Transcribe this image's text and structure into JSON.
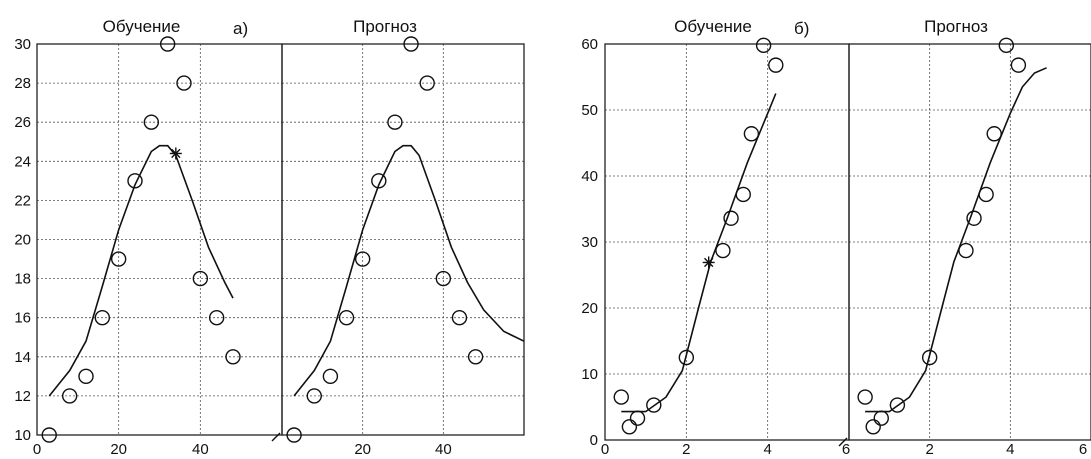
{
  "chart_data": [
    {
      "type": "scatter",
      "label": "а)",
      "ylim": [
        10,
        30
      ],
      "yticks": [
        10,
        12,
        14,
        16,
        18,
        20,
        22,
        24,
        26,
        28,
        30
      ],
      "panels": [
        {
          "title": "Обучение",
          "xlim": [
            0,
            60
          ],
          "xticks": [
            20,
            40
          ],
          "x_tick_labels": [
            "0",
            "20",
            "40"
          ],
          "points": [
            [
              3,
              10
            ],
            [
              8,
              12
            ],
            [
              12,
              13
            ],
            [
              16,
              16
            ],
            [
              20,
              19
            ],
            [
              24,
              23
            ],
            [
              28,
              26
            ],
            [
              32,
              30
            ],
            [
              36,
              28
            ],
            [
              40,
              18
            ],
            [
              44,
              16
            ],
            [
              48,
              14
            ]
          ],
          "curve": [
            [
              3,
              12
            ],
            [
              8,
              13.3
            ],
            [
              12,
              14.8
            ],
            [
              16,
              17.6
            ],
            [
              20,
              20.5
            ],
            [
              24,
              22.8
            ],
            [
              28,
              24.5
            ],
            [
              30,
              24.8
            ],
            [
              32,
              24.8
            ],
            [
              34,
              24.3
            ],
            [
              38,
              22
            ],
            [
              42,
              19.6
            ],
            [
              46,
              17.8
            ],
            [
              48,
              17
            ]
          ],
          "marker": [
            34,
            24.4
          ]
        },
        {
          "title": "Прогноз",
          "xlim": [
            0,
            60
          ],
          "xticks": [
            20,
            40
          ],
          "x_tick_labels": [
            "20",
            "40"
          ],
          "points": [
            [
              3,
              10
            ],
            [
              8,
              12
            ],
            [
              12,
              13
            ],
            [
              16,
              16
            ],
            [
              20,
              19
            ],
            [
              24,
              23
            ],
            [
              28,
              26
            ],
            [
              32,
              30
            ],
            [
              36,
              28
            ],
            [
              40,
              18
            ],
            [
              44,
              16
            ],
            [
              48,
              14
            ]
          ],
          "curve": [
            [
              3,
              12
            ],
            [
              8,
              13.3
            ],
            [
              12,
              14.8
            ],
            [
              16,
              17.6
            ],
            [
              20,
              20.5
            ],
            [
              24,
              22.8
            ],
            [
              28,
              24.5
            ],
            [
              30,
              24.8
            ],
            [
              32,
              24.8
            ],
            [
              34,
              24.3
            ],
            [
              38,
              22
            ],
            [
              42,
              19.6
            ],
            [
              46,
              17.8
            ],
            [
              50,
              16.4
            ],
            [
              55,
              15.3
            ],
            [
              60,
              14.8
            ]
          ]
        }
      ]
    },
    {
      "type": "scatter",
      "label": "б)",
      "ylim": [
        0,
        60
      ],
      "yticks": [
        0,
        10,
        20,
        30,
        40,
        50,
        60
      ],
      "panels": [
        {
          "title": "Обучение",
          "xlim": [
            0,
            6
          ],
          "xticks": [
            2,
            4
          ],
          "x_tick_labels": [
            "0",
            "2",
            "4",
            "6"
          ],
          "points": [
            [
              0.4,
              6.5
            ],
            [
              0.6,
              2
            ],
            [
              0.8,
              3.3
            ],
            [
              1.2,
              5.3
            ],
            [
              2.0,
              12.5
            ],
            [
              2.9,
              28.7
            ],
            [
              3.1,
              33.6
            ],
            [
              3.4,
              37.2
            ],
            [
              3.6,
              46.4
            ],
            [
              3.9,
              59.8
            ],
            [
              4.2,
              56.8
            ]
          ],
          "curve": [
            [
              0.4,
              4.3
            ],
            [
              1.0,
              4.3
            ],
            [
              1.5,
              6.5
            ],
            [
              1.9,
              10.5
            ],
            [
              2.3,
              20
            ],
            [
              2.6,
              27
            ],
            [
              3.0,
              33.5
            ],
            [
              3.5,
              42
            ],
            [
              4.0,
              49.5
            ],
            [
              4.2,
              52.5
            ]
          ],
          "marker": [
            2.55,
            26.9
          ],
          "short_line": [
            [
              0.4,
              4.3
            ],
            [
              1.0,
              4.3
            ]
          ]
        },
        {
          "title": "Прогноз",
          "xlim": [
            0,
            6
          ],
          "xticks": [
            2,
            4
          ],
          "x_tick_labels": [
            "2",
            "4",
            "6"
          ],
          "points": [
            [
              0.4,
              6.5
            ],
            [
              0.6,
              2
            ],
            [
              0.8,
              3.3
            ],
            [
              1.2,
              5.3
            ],
            [
              2.0,
              12.5
            ],
            [
              2.9,
              28.7
            ],
            [
              3.1,
              33.6
            ],
            [
              3.4,
              37.2
            ],
            [
              3.6,
              46.4
            ],
            [
              3.9,
              59.8
            ],
            [
              4.2,
              56.8
            ]
          ],
          "curve": [
            [
              0.4,
              4.3
            ],
            [
              1.0,
              4.3
            ],
            [
              1.5,
              6.5
            ],
            [
              1.9,
              10.5
            ],
            [
              2.3,
              20
            ],
            [
              2.6,
              27
            ],
            [
              3.0,
              33.5
            ],
            [
              3.5,
              42
            ],
            [
              4.0,
              49.5
            ],
            [
              4.3,
              53.5
            ],
            [
              4.6,
              55.6
            ],
            [
              4.9,
              56.4
            ]
          ],
          "short_line": [
            [
              0.4,
              4.3
            ],
            [
              1.0,
              4.3
            ]
          ]
        }
      ]
    }
  ]
}
